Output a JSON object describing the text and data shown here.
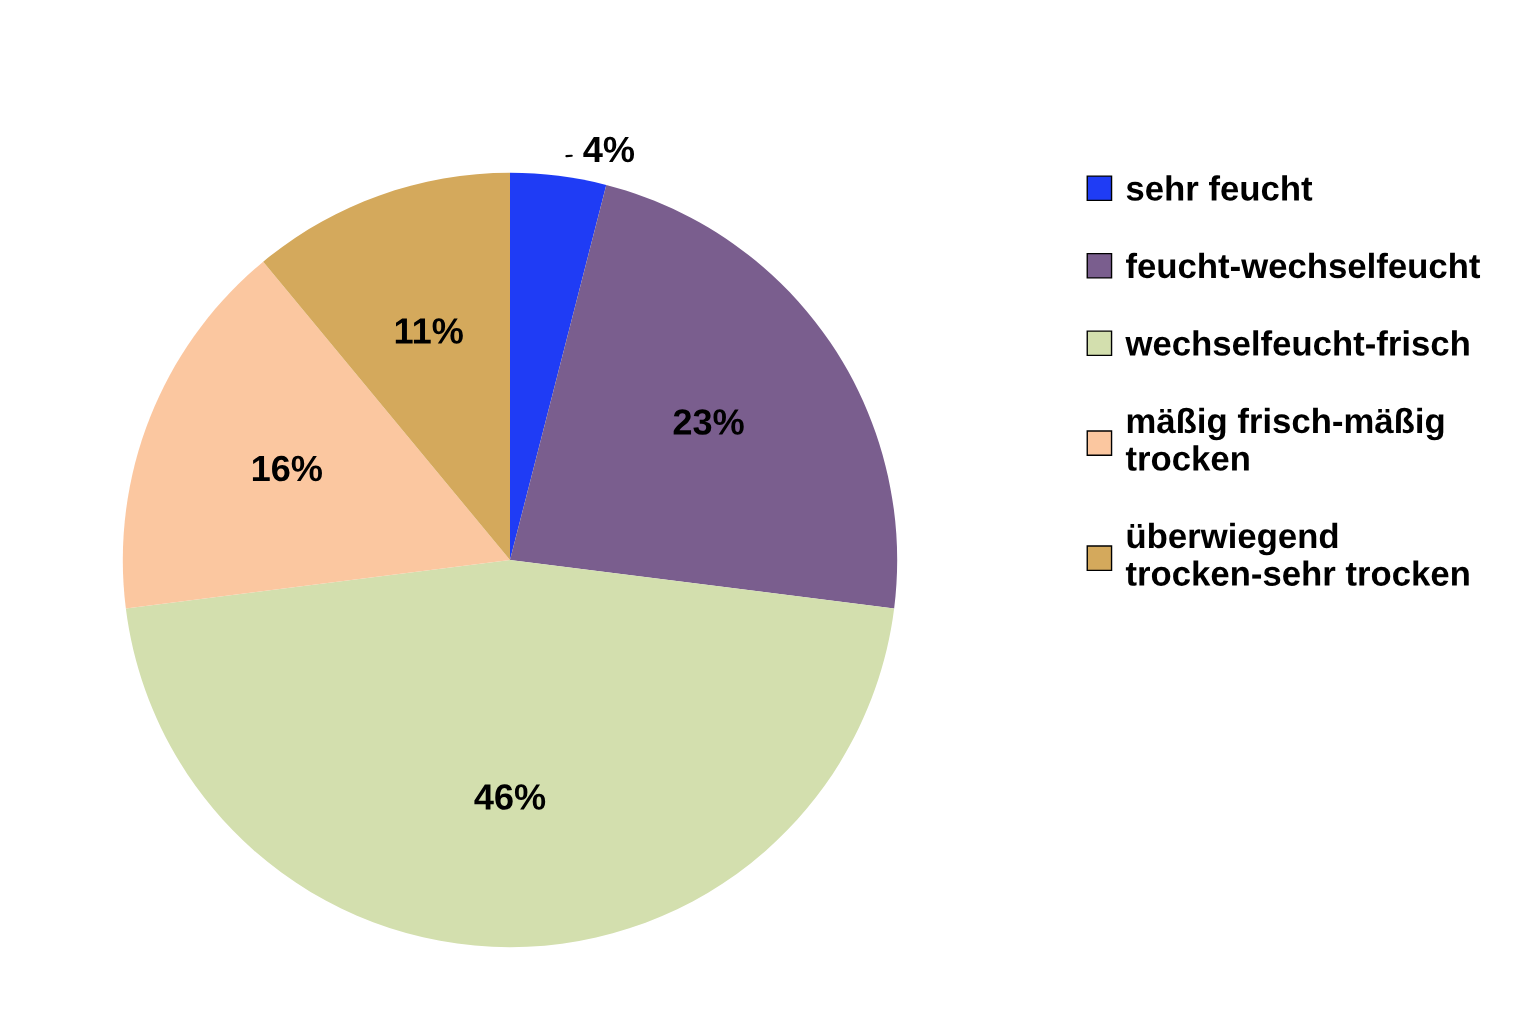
{
  "chart_data": {
    "type": "pie",
    "categories": [
      "sehr feucht",
      "feucht-wechselfeucht",
      "wechselfeucht-frisch",
      "mäßig frisch-mäßig trocken",
      "überwiegend trocken-sehr trocken"
    ],
    "values": [
      4,
      23,
      46,
      16,
      11
    ],
    "value_labels": [
      "4%",
      "23%",
      "46%",
      "16%",
      "11%"
    ],
    "colors": [
      "#1f3cf5",
      "#7a5e8e",
      "#d3dfae",
      "#fbc7a0",
      "#d4a95c"
    ],
    "legend": "right"
  }
}
